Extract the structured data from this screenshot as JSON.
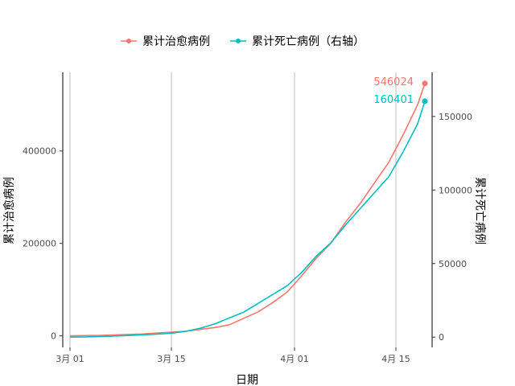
{
  "chart_data": {
    "type": "line",
    "title": "",
    "xlabel": "日期",
    "ylabel": "累计治愈病例",
    "y2label": "累计死亡病例",
    "x_tick_labels": [
      "3月 01",
      "3月 15",
      "4月 01",
      "4月 15"
    ],
    "x_ticks": [
      "2020-03-01",
      "2020-03-15",
      "2020-04-01",
      "2020-04-15"
    ],
    "xlim": [
      "2020-02-29",
      "2020-04-20"
    ],
    "ylim": [
      -25000,
      570000
    ],
    "y_ticks": [
      0,
      200000,
      400000
    ],
    "y2lim": [
      -7000,
      180000
    ],
    "y2_ticks": [
      0,
      50000,
      100000,
      150000
    ],
    "grid": "vertical major gridlines only",
    "legend_position": "top",
    "legend": [
      "累计治愈病例",
      "累计死亡病例（右轴）"
    ],
    "series": [
      {
        "name": "累计治愈病例",
        "axis": "left",
        "color": "#F8766D",
        "end_label": "546024",
        "points": [
          [
            "2020-03-01",
            0
          ],
          [
            "2020-03-03",
            500
          ],
          [
            "2020-03-05",
            1000
          ],
          [
            "2020-03-07",
            2000
          ],
          [
            "2020-03-09",
            3000
          ],
          [
            "2020-03-11",
            4000
          ],
          [
            "2020-03-13",
            6000
          ],
          [
            "2020-03-15",
            8000
          ],
          [
            "2020-03-17",
            10000
          ],
          [
            "2020-03-19",
            14000
          ],
          [
            "2020-03-21",
            18000
          ],
          [
            "2020-03-23",
            24000
          ],
          [
            "2020-03-25",
            38000
          ],
          [
            "2020-03-27",
            52000
          ],
          [
            "2020-03-29",
            72000
          ],
          [
            "2020-03-31",
            95000
          ],
          [
            "2020-04-02",
            130000
          ],
          [
            "2020-04-04",
            168000
          ],
          [
            "2020-04-06",
            200000
          ],
          [
            "2020-04-08",
            245000
          ],
          [
            "2020-04-10",
            285000
          ],
          [
            "2020-04-12",
            330000
          ],
          [
            "2020-04-14",
            375000
          ],
          [
            "2020-04-16",
            435000
          ],
          [
            "2020-04-18",
            500000
          ],
          [
            "2020-04-19",
            546024
          ]
        ]
      },
      {
        "name": "累计死亡病例（右轴）",
        "axis": "right",
        "color": "#00BFC4",
        "end_label": "160401",
        "points": [
          [
            "2020-03-01",
            0
          ],
          [
            "2020-03-03",
            100
          ],
          [
            "2020-03-05",
            300
          ],
          [
            "2020-03-07",
            700
          ],
          [
            "2020-03-09",
            1100
          ],
          [
            "2020-03-11",
            1500
          ],
          [
            "2020-03-13",
            2000
          ],
          [
            "2020-03-15",
            2700
          ],
          [
            "2020-03-17",
            4000
          ],
          [
            "2020-03-19",
            6000
          ],
          [
            "2020-03-21",
            9000
          ],
          [
            "2020-03-23",
            13000
          ],
          [
            "2020-03-25",
            17000
          ],
          [
            "2020-03-27",
            23000
          ],
          [
            "2020-03-29",
            29000
          ],
          [
            "2020-03-31",
            35000
          ],
          [
            "2020-04-02",
            44000
          ],
          [
            "2020-04-04",
            55000
          ],
          [
            "2020-04-06",
            64000
          ],
          [
            "2020-04-08",
            76000
          ],
          [
            "2020-04-10",
            87000
          ],
          [
            "2020-04-12",
            98000
          ],
          [
            "2020-04-14",
            109000
          ],
          [
            "2020-04-16",
            126000
          ],
          [
            "2020-04-18",
            145000
          ],
          [
            "2020-04-19",
            160401
          ]
        ]
      }
    ]
  }
}
